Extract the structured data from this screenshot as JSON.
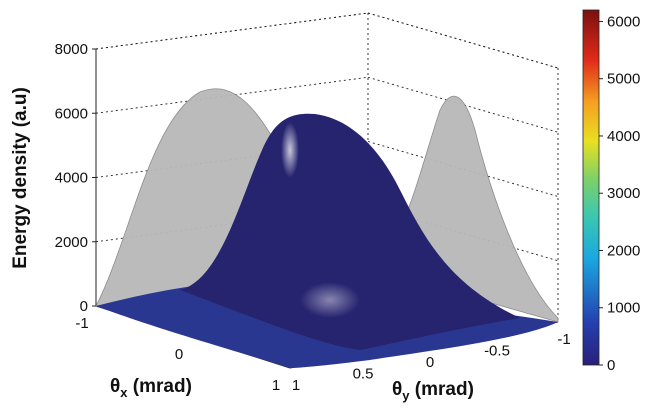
{
  "chart_data": {
    "type": "surface3d",
    "zlabel": "Energy density (a.u)",
    "xlabel_main": "θ",
    "xlabel_sub": "x",
    "xlabel_unit": " (mrad)",
    "ylabel_main": "θ",
    "ylabel_sub": "y",
    "ylabel_unit": " (mrad)",
    "zlim": [
      0,
      8000
    ],
    "xlim": [
      -1,
      1
    ],
    "ylim": [
      -1,
      1
    ],
    "z_ticks": [
      "0",
      "2000",
      "4000",
      "6000",
      "8000"
    ],
    "x_ticks": [
      "-1",
      "0",
      "1"
    ],
    "y_ticks": [
      "1",
      "0.5",
      "0",
      "-0.5",
      "-1"
    ],
    "colorbar": {
      "range": [
        0,
        6200
      ],
      "ticks": [
        "0",
        "1000",
        "2000",
        "3000",
        "4000",
        "5000",
        "6000"
      ],
      "colormap": "jet"
    },
    "peak_value": 6100,
    "peak_theta_x": 0.1,
    "peak_theta_y": 0.15,
    "projection_color": "#b8b8b8",
    "grid": true
  }
}
